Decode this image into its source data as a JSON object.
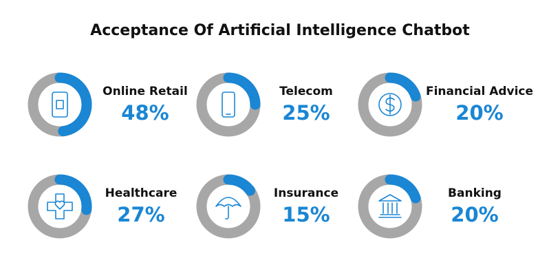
{
  "chart_data": {
    "type": "donut",
    "title": "Acceptance Of Artificial Intelligence Chatbot",
    "categories": [
      "Online Retail",
      "Telecom",
      "Financial Advice",
      "Healthcare",
      "Insurance",
      "Banking"
    ],
    "values": [
      48,
      25,
      20,
      27,
      15,
      20
    ],
    "value_labels": [
      "48%",
      "25%",
      "20%",
      "27%",
      "15%",
      "20%"
    ],
    "color": "#1a86d4",
    "track_color": "#a7a7a7"
  }
}
